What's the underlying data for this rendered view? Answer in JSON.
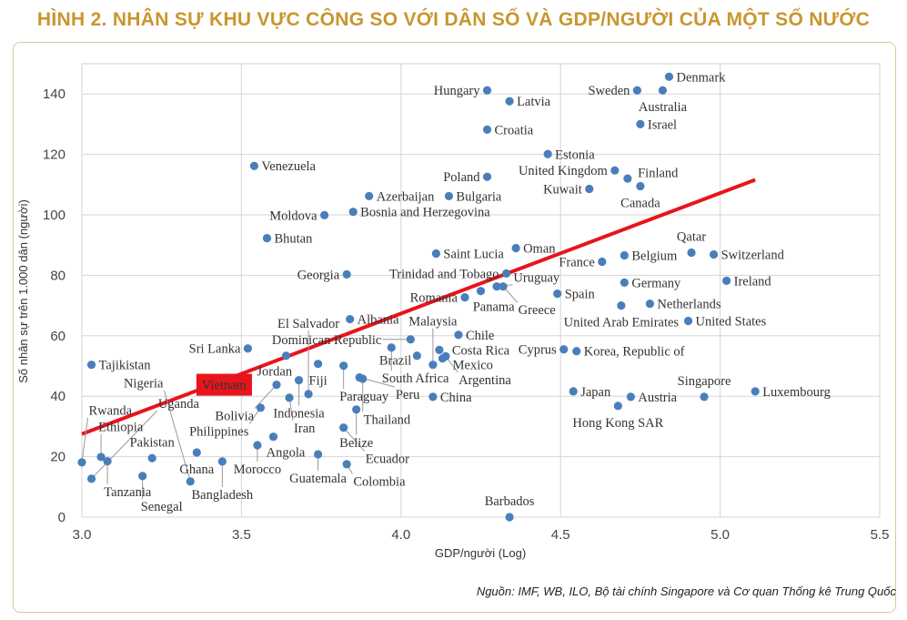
{
  "title": "HÌNH 2. NHÂN SỰ KHU VỰC CÔNG SO VỚI DÂN SỐ VÀ GDP/NGƯỜI CỦA MỘT SỐ NƯỚC",
  "source": "Nguồn: IMF, WB, ILO, Bộ tài chính Singapore và Cơ quan Thống kê Trung Quốc",
  "colors": {
    "title": "#c8962e",
    "point": "#4a7ebb",
    "trend": "#e8141c",
    "highlight": "#e8141c"
  },
  "chart_data": {
    "type": "scatter",
    "xlabel": "GDP/người (Log)",
    "ylabel": "Số nhân sự trên 1.000 dân (người)",
    "xlim": [
      3.0,
      5.5
    ],
    "ylim": [
      0,
      150
    ],
    "xticks": [
      "3.0",
      "3.5",
      "4.0",
      "4.5",
      "5.0",
      "5.5"
    ],
    "yticks": [
      "0",
      "20",
      "40",
      "60",
      "80",
      "100",
      "120",
      "140"
    ],
    "grid": true,
    "highlight": "Vietnam",
    "trendline": {
      "x": [
        3.0,
        5.11
      ],
      "y": [
        27.5,
        111.6
      ]
    },
    "points": [
      {
        "name": "Denmark",
        "x": 4.84,
        "y": 145.7
      },
      {
        "name": "Sweden",
        "x": 4.74,
        "y": 141.2
      },
      {
        "name": "Australia",
        "x": 4.82,
        "y": 141.2
      },
      {
        "name": "Hungary",
        "x": 4.27,
        "y": 141.2
      },
      {
        "name": "Latvia",
        "x": 4.34,
        "y": 137.6
      },
      {
        "name": "Croatia",
        "x": 4.27,
        "y": 128.2
      },
      {
        "name": "Israel",
        "x": 4.75,
        "y": 130.0
      },
      {
        "name": "Estonia",
        "x": 4.46,
        "y": 120.1
      },
      {
        "name": "United Kingdom",
        "x": 4.67,
        "y": 114.7
      },
      {
        "name": "Finland",
        "x": 4.71,
        "y": 112.0
      },
      {
        "name": "Canada",
        "x": 4.75,
        "y": 109.5
      },
      {
        "name": "Kuwait",
        "x": 4.59,
        "y": 108.6
      },
      {
        "name": "Poland",
        "x": 4.27,
        "y": 112.6
      },
      {
        "name": "Venezuela",
        "x": 3.54,
        "y": 116.2
      },
      {
        "name": "Azerbaijan",
        "x": 3.9,
        "y": 106.2
      },
      {
        "name": "Bulgaria",
        "x": 4.15,
        "y": 106.2
      },
      {
        "name": "Bosnia and Herzegovina",
        "x": 3.85,
        "y": 101.0
      },
      {
        "name": "Moldova",
        "x": 3.76,
        "y": 99.9
      },
      {
        "name": "Bhutan",
        "x": 3.58,
        "y": 92.3
      },
      {
        "name": "Saint Lucia",
        "x": 4.11,
        "y": 87.2
      },
      {
        "name": "Oman",
        "x": 4.36,
        "y": 89.0
      },
      {
        "name": "Trinidad and Tobago",
        "x": 4.33,
        "y": 80.6
      },
      {
        "name": "Georgia",
        "x": 3.83,
        "y": 80.3
      },
      {
        "name": "France",
        "x": 4.63,
        "y": 84.5
      },
      {
        "name": "Belgium",
        "x": 4.7,
        "y": 86.6
      },
      {
        "name": "Qatar",
        "x": 4.91,
        "y": 87.5
      },
      {
        "name": "Switzerland",
        "x": 4.98,
        "y": 86.9
      },
      {
        "name": "Ireland",
        "x": 5.02,
        "y": 78.2
      },
      {
        "name": "Germany",
        "x": 4.7,
        "y": 77.6
      },
      {
        "name": "Romania",
        "x": 4.2,
        "y": 72.7
      },
      {
        "name": "Panama",
        "x": 4.25,
        "y": 74.8
      },
      {
        "name": "Uruguay",
        "x": 4.3,
        "y": 76.3
      },
      {
        "name": "Greece",
        "x": 4.32,
        "y": 76.3
      },
      {
        "name": "Spain",
        "x": 4.49,
        "y": 73.9
      },
      {
        "name": "United Arab Emirates",
        "x": 4.69,
        "y": 70.0
      },
      {
        "name": "Netherlands",
        "x": 4.78,
        "y": 70.6
      },
      {
        "name": "United States",
        "x": 4.9,
        "y": 64.9
      },
      {
        "name": "Albania",
        "x": 3.84,
        "y": 65.5
      },
      {
        "name": "Chile",
        "x": 4.18,
        "y": 60.3
      },
      {
        "name": "Dominican Republic",
        "x": 4.03,
        "y": 58.8
      },
      {
        "name": "South Africa",
        "x": 3.97,
        "y": 56.1
      },
      {
        "name": "Brazil",
        "x": 4.05,
        "y": 53.4
      },
      {
        "name": "Costa Rica",
        "x": 4.12,
        "y": 55.3
      },
      {
        "name": "Mexico",
        "x": 4.13,
        "y": 52.5
      },
      {
        "name": "Argentina",
        "x": 4.14,
        "y": 53.2
      },
      {
        "name": "Malaysia",
        "x": 4.1,
        "y": 50.4
      },
      {
        "name": "China",
        "x": 4.1,
        "y": 39.8
      },
      {
        "name": "Cyprus",
        "x": 4.51,
        "y": 55.5
      },
      {
        "name": "Korea, Republic of",
        "x": 4.55,
        "y": 54.9
      },
      {
        "name": "Japan",
        "x": 4.54,
        "y": 41.6
      },
      {
        "name": "Austria",
        "x": 4.72,
        "y": 39.8
      },
      {
        "name": "Hong Kong SAR",
        "x": 4.68,
        "y": 36.8
      },
      {
        "name": "Singapore",
        "x": 4.95,
        "y": 39.8
      },
      {
        "name": "Luxembourg",
        "x": 5.11,
        "y": 41.6
      },
      {
        "name": "Barbados",
        "x": 4.34,
        "y": 0.0
      },
      {
        "name": "Sri Lanka",
        "x": 3.52,
        "y": 55.8
      },
      {
        "name": "Jordan",
        "x": 3.64,
        "y": 53.4
      },
      {
        "name": "Tajikistan",
        "x": 3.03,
        "y": 50.4
      },
      {
        "name": "Fiji",
        "x": 3.74,
        "y": 50.7
      },
      {
        "name": "Paraguay",
        "x": 3.82,
        "y": 50.1
      },
      {
        "name": "Indonesia",
        "x": 3.68,
        "y": 45.3
      },
      {
        "name": "Peru",
        "x": 3.87,
        "y": 46.2
      },
      {
        "name": "Thailand",
        "x": 3.88,
        "y": 45.8
      },
      {
        "name": "Vietnam",
        "x": 3.57,
        "y": 43.8
      },
      {
        "name": "Bolivia",
        "x": 3.61,
        "y": 43.8
      },
      {
        "name": "Iran",
        "x": 3.65,
        "y": 39.5
      },
      {
        "name": "El Salvador",
        "x": 3.71,
        "y": 40.7
      },
      {
        "name": "Philippines",
        "x": 3.56,
        "y": 36.2
      },
      {
        "name": "Belize",
        "x": 3.86,
        "y": 35.6
      },
      {
        "name": "Ecuador",
        "x": 3.82,
        "y": 29.6
      },
      {
        "name": "Angola",
        "x": 3.6,
        "y": 26.6
      },
      {
        "name": "Morocco",
        "x": 3.55,
        "y": 23.8
      },
      {
        "name": "Ghana",
        "x": 3.36,
        "y": 21.4
      },
      {
        "name": "Guatemala",
        "x": 3.74,
        "y": 20.8
      },
      {
        "name": "Bangladesh",
        "x": 3.44,
        "y": 18.4
      },
      {
        "name": "Colombia",
        "x": 3.83,
        "y": 17.5
      },
      {
        "name": "Pakistan",
        "x": 3.22,
        "y": 19.5
      },
      {
        "name": "Ethiopia",
        "x": 3.06,
        "y": 19.9
      },
      {
        "name": "Tanzania",
        "x": 3.08,
        "y": 18.5
      },
      {
        "name": "Rwanda",
        "x": 3.0,
        "y": 18.1
      },
      {
        "name": "Uganda",
        "x": 3.03,
        "y": 12.7
      },
      {
        "name": "Senegal",
        "x": 3.19,
        "y": 13.6
      },
      {
        "name": "Nigeria",
        "x": 3.34,
        "y": 11.8
      }
    ]
  }
}
